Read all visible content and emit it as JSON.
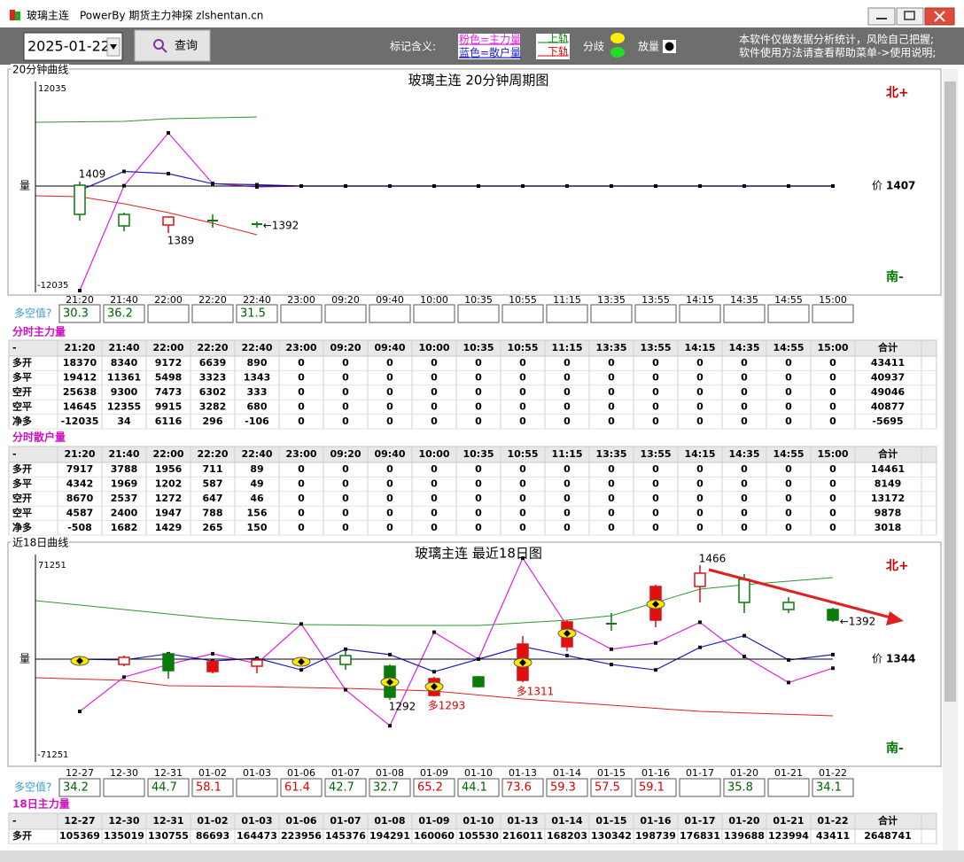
{
  "window": {
    "title": "玻璃主连",
    "subtitle": "PowerBy 期货主力神探 zlshentan.cn"
  },
  "toolbar": {
    "date": "2025-01-22",
    "query": "查询",
    "legend_label": "标记含义:",
    "pink": "粉色=主力量",
    "blue": "蓝色=散户量",
    "upper": "上轨",
    "lower": "下轨",
    "diverge": "分歧",
    "volume": "放量",
    "notice": [
      "本软件仅做数据分析统计，风险自己把握;",
      "软件使用方法请查看帮助菜单->使用说明;"
    ]
  },
  "chart1": {
    "panel_label": "20分钟曲线",
    "title": "玻璃主连 20分钟周期图",
    "ylim": [
      -12035,
      12035
    ],
    "axis_label": "量",
    "north": "北+",
    "south": "南-",
    "price_label": "价",
    "price": 1407,
    "annotations": [
      "1409",
      "1389",
      "←1392"
    ],
    "times": [
      "21:20",
      "21:40",
      "22:00",
      "22:20",
      "22:40",
      "23:00",
      "09:20",
      "09:40",
      "10:00",
      "10:35",
      "10:55",
      "11:15",
      "13:35",
      "13:55",
      "14:15",
      "14:35",
      "14:55",
      "15:00"
    ],
    "strength_label": "多空值?",
    "strength": [
      30.3,
      36.2,
      null,
      null,
      31.5,
      null,
      null,
      null,
      null,
      null,
      null,
      null,
      null,
      null,
      null,
      null,
      null,
      null
    ]
  },
  "main_table": {
    "title": "分时主力量",
    "corner": "-",
    "total_label": "合计",
    "rows": [
      {
        "label": "多开",
        "values": [
          18370,
          8340,
          9172,
          6639,
          890,
          0,
          0,
          0,
          0,
          0,
          0,
          0,
          0,
          0,
          0,
          0,
          0,
          0
        ],
        "total": 43411
      },
      {
        "label": "多平",
        "values": [
          19412,
          11361,
          5498,
          3323,
          1343,
          0,
          0,
          0,
          0,
          0,
          0,
          0,
          0,
          0,
          0,
          0,
          0,
          0
        ],
        "total": 40937
      },
      {
        "label": "空开",
        "values": [
          25638,
          9300,
          7473,
          6302,
          333,
          0,
          0,
          0,
          0,
          0,
          0,
          0,
          0,
          0,
          0,
          0,
          0,
          0
        ],
        "total": 49046
      },
      {
        "label": "空平",
        "values": [
          14645,
          12355,
          9915,
          3282,
          680,
          0,
          0,
          0,
          0,
          0,
          0,
          0,
          0,
          0,
          0,
          0,
          0,
          0
        ],
        "total": 40877
      },
      {
        "label": "净多",
        "values": [
          -12035,
          34,
          6116,
          296,
          -106,
          0,
          0,
          0,
          0,
          0,
          0,
          0,
          0,
          0,
          0,
          0,
          0,
          0
        ],
        "total": -5695
      }
    ]
  },
  "retail_table": {
    "title": "分时散户量",
    "corner": "-",
    "total_label": "合计",
    "rows": [
      {
        "label": "多开",
        "values": [
          7917,
          3788,
          1956,
          711,
          89,
          0,
          0,
          0,
          0,
          0,
          0,
          0,
          0,
          0,
          0,
          0,
          0,
          0
        ],
        "total": 14461
      },
      {
        "label": "多平",
        "values": [
          4342,
          1969,
          1202,
          587,
          49,
          0,
          0,
          0,
          0,
          0,
          0,
          0,
          0,
          0,
          0,
          0,
          0,
          0
        ],
        "total": 8149
      },
      {
        "label": "空开",
        "values": [
          8670,
          2537,
          1272,
          647,
          46,
          0,
          0,
          0,
          0,
          0,
          0,
          0,
          0,
          0,
          0,
          0,
          0,
          0
        ],
        "total": 13172
      },
      {
        "label": "空平",
        "values": [
          4587,
          2400,
          1947,
          788,
          156,
          0,
          0,
          0,
          0,
          0,
          0,
          0,
          0,
          0,
          0,
          0,
          0,
          0
        ],
        "total": 9878
      },
      {
        "label": "净多",
        "values": [
          -508,
          1682,
          1429,
          265,
          150,
          0,
          0,
          0,
          0,
          0,
          0,
          0,
          0,
          0,
          0,
          0,
          0,
          0
        ],
        "total": 3018
      }
    ]
  },
  "chart2": {
    "panel_label": "近18日曲线",
    "title": "玻璃主连 最近18日图",
    "ylim": [
      -71251,
      71251
    ],
    "axis_label": "量",
    "north": "北+",
    "south": "南-",
    "price_label": "价",
    "price": 1344,
    "annotations": [
      "1466",
      "←1392",
      "1292",
      "多1293",
      "多1311"
    ],
    "times": [
      "12-27",
      "12-30",
      "12-31",
      "01-02",
      "01-03",
      "01-06",
      "01-07",
      "01-08",
      "01-09",
      "01-10",
      "01-13",
      "01-14",
      "01-15",
      "01-16",
      "01-17",
      "01-20",
      "01-21",
      "01-22"
    ],
    "strength_label": "多空值?",
    "strength": [
      34.2,
      null,
      44.7,
      58.1,
      null,
      61.4,
      42.7,
      32.7,
      65.2,
      44.1,
      73.6,
      59.3,
      57.5,
      59.1,
      null,
      35.8,
      null,
      34.1
    ],
    "pink_line": [
      -36900,
      -12700,
      -3800,
      3800,
      -3200,
      24800,
      -21600,
      -47000,
      19000,
      0,
      71251,
      23500,
      7000,
      11400,
      26000,
      1900,
      -16500,
      -6400
    ],
    "blue_line": [
      0,
      -600,
      3800,
      -1300,
      600,
      -7600,
      7000,
      3200,
      -8900,
      0,
      8900,
      2500,
      -3800,
      -7600,
      8300,
      16500,
      -600,
      3200
    ]
  },
  "daily_table": {
    "title": "18日主力量",
    "corner": "-",
    "total_label": "合计",
    "rows": [
      {
        "label": "多开",
        "values": [
          105369,
          135019,
          130755,
          86693,
          164473,
          223956,
          145376,
          194291,
          160060,
          105530,
          216011,
          168203,
          130342,
          198739,
          176831,
          139688,
          123994,
          43411
        ],
        "total": 2648741
      }
    ]
  }
}
